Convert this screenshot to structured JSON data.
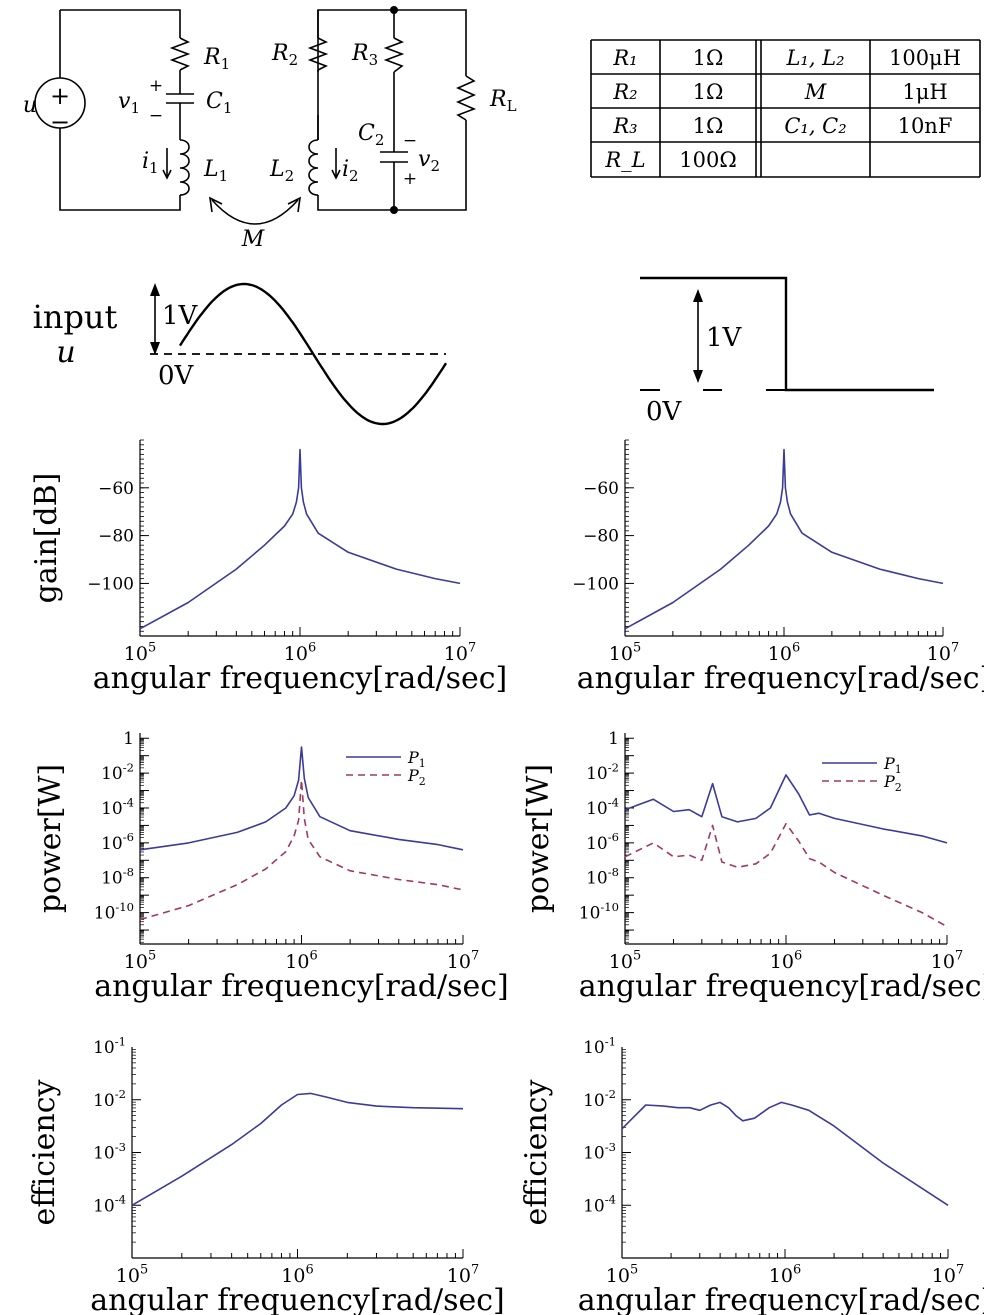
{
  "circuit": {
    "source": "u",
    "source_plus": "+",
    "source_minus": "−",
    "R1": "R",
    "R1_sub": "1",
    "R2": "R",
    "R2_sub": "2",
    "R3": "R",
    "R3_sub": "3",
    "RL": "R",
    "RL_sub": "L",
    "C1": "C",
    "C1_sub": "1",
    "C2": "C",
    "C2_sub": "2",
    "L1": "L",
    "L1_sub": "1",
    "L2": "L",
    "L2_sub": "2",
    "v1": "v",
    "v1_sub": "1",
    "v2": "v",
    "v2_sub": "2",
    "i1": "i",
    "i1_sub": "1",
    "i2": "i",
    "i2_sub": "2",
    "M": "M",
    "plus": "+",
    "minus": "−"
  },
  "param_table": {
    "rows": [
      [
        "R₁",
        "1Ω",
        "L₁, L₂",
        "100μH"
      ],
      [
        "R₂",
        "1Ω",
        "M",
        "1μH"
      ],
      [
        "R₃",
        "1Ω",
        "C₁, C₂",
        "10nF"
      ],
      [
        "R_L",
        "100Ω",
        "",
        ""
      ]
    ]
  },
  "inputs": {
    "label_line1": "input",
    "label_line2": "u",
    "sine_amp": "1V",
    "sine_zero": "0V",
    "pulse_amp": "1V",
    "pulse_zero": "0V"
  },
  "chart_data": [
    {
      "type": "line",
      "panel": "gain-sine",
      "ylabel": "gain[dB]",
      "xlabel": "angular frequency[rad/sec]",
      "xscale": "log",
      "xlim": [
        100000,
        10000000
      ],
      "ylim": [
        -122,
        -40
      ],
      "xticks": [
        "10^5",
        "10^6",
        "10^7"
      ],
      "yticks": [
        -60,
        -80,
        -100
      ],
      "series": [
        {
          "color": "#3b3b9a",
          "x": [
            100000,
            200000,
            400000,
            600000,
            800000,
            900000,
            950000,
            980000,
            1000000,
            1020000,
            1050000,
            1100000,
            1300000,
            2000000,
            4000000,
            7000000,
            10000000
          ],
          "y": [
            -119,
            -108,
            -94,
            -84,
            -76,
            -71,
            -66,
            -60,
            -44,
            -60,
            -66,
            -71,
            -79,
            -87,
            -94,
            -98,
            -100
          ]
        }
      ]
    },
    {
      "type": "line",
      "panel": "gain-pulse",
      "ylabel": "",
      "xlabel": "angular frequency[rad/sec]",
      "xscale": "log",
      "xlim": [
        100000,
        10000000
      ],
      "ylim": [
        -122,
        -40
      ],
      "xticks": [
        "10^5",
        "10^6",
        "10^7"
      ],
      "yticks": [
        -60,
        -80,
        -100
      ],
      "series": [
        {
          "color": "#3b3b9a",
          "x": [
            100000,
            200000,
            400000,
            600000,
            800000,
            900000,
            950000,
            980000,
            1000000,
            1020000,
            1050000,
            1100000,
            1300000,
            2000000,
            4000000,
            7000000,
            10000000
          ],
          "y": [
            -119,
            -108,
            -94,
            -84,
            -76,
            -71,
            -66,
            -60,
            -44,
            -60,
            -66,
            -71,
            -79,
            -87,
            -94,
            -98,
            -100
          ]
        }
      ]
    },
    {
      "type": "line",
      "panel": "power-sine",
      "ylabel": "power[W]",
      "xlabel": "angular frequency[rad/sec]",
      "xscale": "log",
      "yscale": "log",
      "xlim": [
        100000,
        10000000
      ],
      "ylim_exp": [
        -11.8,
        0.3
      ],
      "xticks": [
        "10^5",
        "10^6",
        "10^7"
      ],
      "yticks": [
        "1",
        "10^-2",
        "10^-4",
        "10^-6",
        "10^-8",
        "10^-10"
      ],
      "legend": "top-right",
      "series": [
        {
          "name": "P1",
          "label_main": "P",
          "label_sub": "1",
          "color": "#3b3b9a",
          "dash": "none",
          "x": [
            100000,
            200000,
            400000,
            600000,
            800000,
            900000,
            960000,
            1000000,
            1040000,
            1100000,
            1300000,
            2000000,
            4000000,
            7000000,
            10000000
          ],
          "log10_y": [
            -6.4,
            -6.0,
            -5.4,
            -4.8,
            -4.0,
            -3.3,
            -2.4,
            -0.5,
            -2.3,
            -3.4,
            -4.5,
            -5.3,
            -5.8,
            -6.1,
            -6.4
          ]
        },
        {
          "name": "P2",
          "label_main": "P",
          "label_sub": "2",
          "color": "#a03866",
          "dash": "7,5",
          "x": [
            100000,
            200000,
            400000,
            600000,
            800000,
            900000,
            960000,
            1000000,
            1040000,
            1100000,
            1300000,
            2000000,
            4000000,
            7000000,
            10000000
          ],
          "log10_y": [
            -10.4,
            -9.6,
            -8.4,
            -7.5,
            -6.5,
            -5.6,
            -4.7,
            -2.4,
            -4.6,
            -5.8,
            -6.8,
            -7.6,
            -8.1,
            -8.4,
            -8.7
          ]
        }
      ]
    },
    {
      "type": "line",
      "panel": "power-pulse",
      "ylabel": "power[W]",
      "xlabel": "angular frequency[rad/sec]",
      "xscale": "log",
      "yscale": "log",
      "xlim": [
        100000,
        10000000
      ],
      "ylim_exp": [
        -11.8,
        0.3
      ],
      "xticks": [
        "10^5",
        "10^6",
        "10^7"
      ],
      "yticks": [
        "1",
        "10^-2",
        "10^-4",
        "10^-6",
        "10^-8",
        "10^-10"
      ],
      "legend": "top-right",
      "series": [
        {
          "name": "P1",
          "label_main": "P",
          "label_sub": "1",
          "color": "#3b3b9a",
          "dash": "none",
          "x": [
            100000,
            150000,
            200000,
            250000,
            300000,
            350000,
            400000,
            500000,
            650000,
            800000,
            1000000,
            1200000,
            1400000,
            1600000,
            2000000,
            4000000,
            7000000,
            10000000
          ],
          "log10_y": [
            -4.1,
            -3.5,
            -4.2,
            -4.1,
            -4.5,
            -2.6,
            -4.5,
            -4.8,
            -4.6,
            -4.0,
            -2.1,
            -3.2,
            -4.4,
            -4.3,
            -4.6,
            -5.2,
            -5.6,
            -6.0
          ]
        },
        {
          "name": "P2",
          "label_main": "P",
          "label_sub": "2",
          "color": "#a03866",
          "dash": "7,5",
          "x": [
            100000,
            150000,
            200000,
            250000,
            300000,
            350000,
            400000,
            500000,
            650000,
            800000,
            1000000,
            1200000,
            1400000,
            1600000,
            2000000,
            4000000,
            7000000,
            10000000
          ],
          "log10_y": [
            -6.8,
            -6.0,
            -6.8,
            -6.7,
            -7.0,
            -5.0,
            -7.1,
            -7.4,
            -7.2,
            -6.6,
            -4.9,
            -5.9,
            -6.9,
            -7.1,
            -7.7,
            -9.0,
            -10.0,
            -10.8
          ]
        }
      ]
    },
    {
      "type": "line",
      "panel": "eff-sine",
      "ylabel": "efficiency",
      "xlabel": "angular frequency[rad/sec]",
      "xscale": "log",
      "yscale": "log",
      "xlim": [
        100000,
        10000000
      ],
      "ylim_exp": [
        -5.0,
        -1.0
      ],
      "xticks": [
        "10^5",
        "10^6",
        "10^7"
      ],
      "yticks": [
        "10^-1",
        "10^-2",
        "10^-3",
        "10^-4"
      ],
      "series": [
        {
          "color": "#3b3b9a",
          "x": [
            100000,
            200000,
            400000,
            600000,
            800000,
            1000000,
            1200000,
            1500000,
            2000000,
            3000000,
            5000000,
            10000000
          ],
          "log10_y": [
            -4.0,
            -3.45,
            -2.85,
            -2.45,
            -2.1,
            -1.9,
            -1.88,
            -1.95,
            -2.05,
            -2.12,
            -2.15,
            -2.17
          ]
        }
      ]
    },
    {
      "type": "line",
      "panel": "eff-pulse",
      "ylabel": "efficiency",
      "xlabel": "angular frequency[rad/sec]",
      "xscale": "log",
      "yscale": "log",
      "xlim": [
        100000,
        10000000
      ],
      "ylim_exp": [
        -5.0,
        -1.0
      ],
      "xticks": [
        "10^5",
        "10^6",
        "10^7"
      ],
      "yticks": [
        "10^-1",
        "10^-2",
        "10^-3",
        "10^-4"
      ],
      "series": [
        {
          "color": "#3b3b9a",
          "x": [
            100000,
            140000,
            180000,
            220000,
            260000,
            300000,
            350000,
            400000,
            450000,
            500000,
            550000,
            650000,
            800000,
            950000,
            1100000,
            1400000,
            2000000,
            4000000,
            10000000
          ],
          "log10_y": [
            -2.55,
            -2.1,
            -2.12,
            -2.15,
            -2.15,
            -2.2,
            -2.1,
            -2.05,
            -2.15,
            -2.3,
            -2.4,
            -2.35,
            -2.15,
            -2.05,
            -2.1,
            -2.2,
            -2.5,
            -3.2,
            -4.0
          ]
        }
      ]
    }
  ]
}
